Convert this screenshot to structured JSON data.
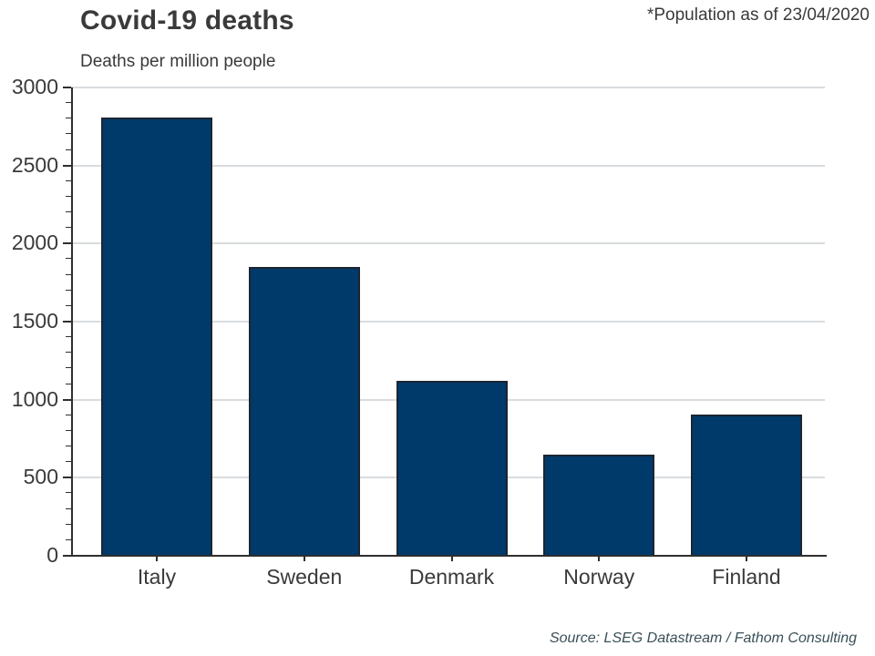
{
  "header": {
    "title": "Covid-19 deaths",
    "subtitle": "Deaths per million people",
    "note": "*Population as of 23/04/2020"
  },
  "footer": {
    "source": "Source: LSEG Datastream / Fathom Consulting"
  },
  "colors": {
    "bar_fill": "#003a6b",
    "bar_border": "#1c2531",
    "gridline": "#d8dcde",
    "axis": "#2f2f2f",
    "text": "#3a3a3a",
    "source_text": "#3a4f58"
  },
  "chart_data": {
    "type": "bar",
    "title": "Covid-19 deaths",
    "subtitle": "Deaths per million people",
    "note": "*Population as of 23/04/2020",
    "source": "Source: LSEG Datastream / Fathom Consulting",
    "categories": [
      "Italy",
      "Sweden",
      "Denmark",
      "Norway",
      "Finland"
    ],
    "values": [
      2805,
      1850,
      1120,
      650,
      905
    ],
    "xlabel": "",
    "ylabel": "Deaths per million people",
    "ylim": [
      0,
      3000
    ],
    "ytick_step": 500,
    "yminor_tick_step": 100,
    "ytick_labels": [
      "0",
      "500",
      "1000",
      "1500",
      "2000",
      "2500",
      "3000"
    ],
    "grid": "horizontal",
    "legend": "none"
  }
}
